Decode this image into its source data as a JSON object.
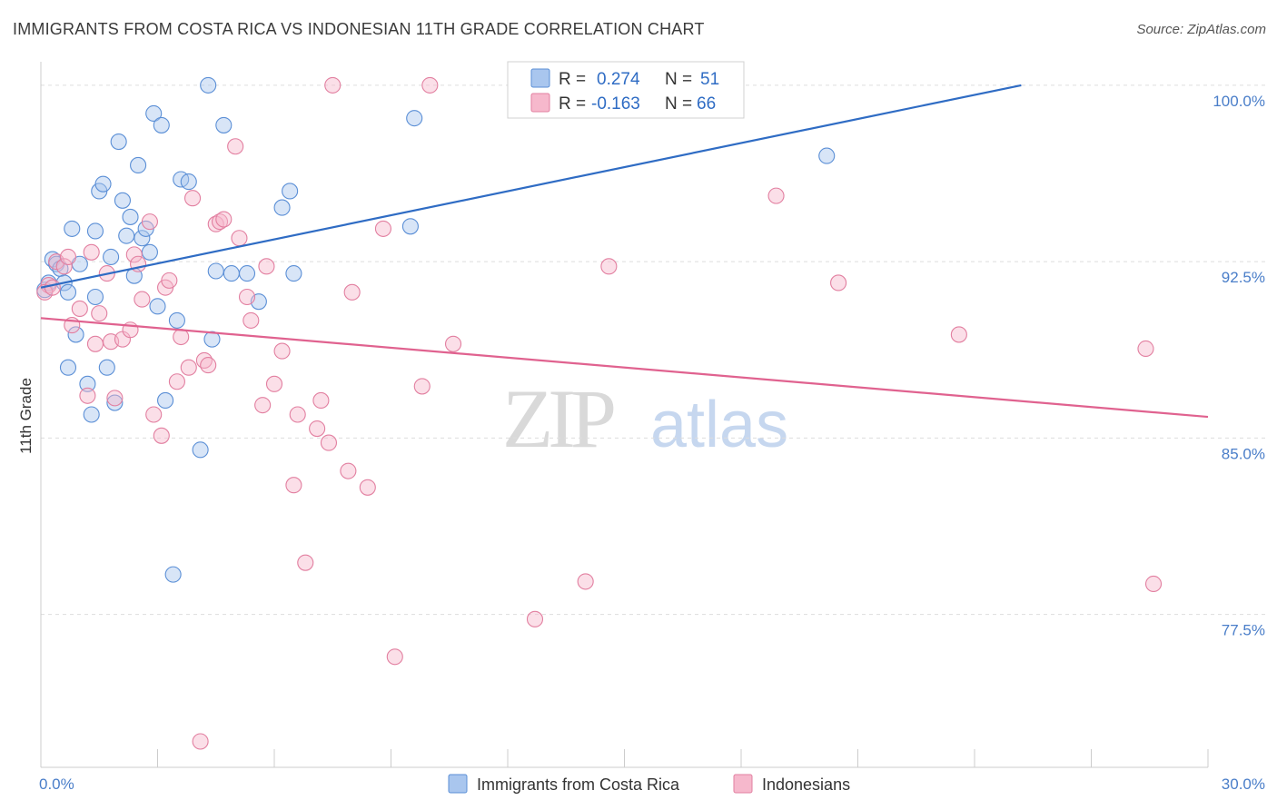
{
  "title": "IMMIGRANTS FROM COSTA RICA VS INDONESIAN 11TH GRADE CORRELATION CHART",
  "source": "Source: ZipAtlas.com",
  "watermark": {
    "zip": "ZIP",
    "atlas": "atlas"
  },
  "colors": {
    "blue_fill": "#a9c6ee",
    "blue_stroke": "#5b8fd6",
    "blue_line": "#2f6cc4",
    "pink_fill": "#f6b8cc",
    "pink_stroke": "#e27fa0",
    "pink_line": "#e0628f",
    "grid": "#dddddd",
    "tick_label": "#4a7ec9"
  },
  "legend": {
    "r_label": "R =",
    "n_label": "N =",
    "rows": [
      {
        "r": "0.274",
        "n": "51",
        "color": "blue"
      },
      {
        "r": "-0.163",
        "n": "66",
        "color": "pink"
      }
    ]
  },
  "chart_data": {
    "type": "scatter",
    "xlabel": "",
    "ylabel": "11th Grade",
    "xlim": [
      0,
      30
    ],
    "ylim": [
      71,
      101
    ],
    "x_tick_labels": [
      {
        "value": 0,
        "label": "0.0%"
      },
      {
        "value": 30,
        "label": "30.0%"
      }
    ],
    "y_tick_labels": [
      {
        "value": 100,
        "label": "100.0%"
      },
      {
        "value": 92.5,
        "label": "92.5%"
      },
      {
        "value": 85,
        "label": "85.0%"
      },
      {
        "value": 77.5,
        "label": "77.5%"
      }
    ],
    "grid": true,
    "legend_position": "bottom-center",
    "series": [
      {
        "name": "Immigrants from Costa Rica",
        "color": "blue",
        "trend": {
          "x": [
            0,
            25.2
          ],
          "y": [
            91.4,
            100.0
          ]
        },
        "points": [
          [
            0.1,
            91.3
          ],
          [
            0.2,
            91.6
          ],
          [
            0.3,
            92.6
          ],
          [
            0.4,
            92.4
          ],
          [
            0.5,
            92.2
          ],
          [
            0.6,
            91.6
          ],
          [
            0.7,
            91.2
          ],
          [
            0.8,
            93.9
          ],
          [
            0.9,
            89.4
          ],
          [
            1.0,
            92.4
          ],
          [
            0.7,
            88.0
          ],
          [
            1.2,
            87.3
          ],
          [
            1.3,
            86.0
          ],
          [
            1.4,
            91.0
          ],
          [
            1.4,
            93.8
          ],
          [
            1.5,
            95.5
          ],
          [
            1.6,
            95.8
          ],
          [
            1.7,
            88.0
          ],
          [
            1.8,
            92.7
          ],
          [
            1.9,
            86.5
          ],
          [
            2.0,
            97.6
          ],
          [
            2.1,
            95.1
          ],
          [
            2.2,
            93.6
          ],
          [
            2.3,
            94.4
          ],
          [
            2.4,
            91.9
          ],
          [
            2.5,
            96.6
          ],
          [
            2.6,
            93.5
          ],
          [
            2.7,
            93.9
          ],
          [
            2.8,
            92.9
          ],
          [
            2.9,
            98.8
          ],
          [
            3.0,
            90.6
          ],
          [
            3.1,
            98.3
          ],
          [
            3.2,
            86.6
          ],
          [
            3.4,
            79.2
          ],
          [
            3.5,
            90.0
          ],
          [
            3.6,
            96.0
          ],
          [
            3.8,
            95.9
          ],
          [
            4.1,
            84.5
          ],
          [
            4.3,
            100.0
          ],
          [
            4.4,
            89.2
          ],
          [
            4.5,
            92.1
          ],
          [
            4.7,
            98.3
          ],
          [
            4.9,
            92.0
          ],
          [
            5.3,
            92.0
          ],
          [
            5.6,
            90.8
          ],
          [
            6.2,
            94.8
          ],
          [
            6.4,
            95.5
          ],
          [
            6.5,
            92.0
          ],
          [
            9.5,
            94.0
          ],
          [
            9.6,
            98.6
          ],
          [
            20.2,
            97.0
          ]
        ]
      },
      {
        "name": "Indonesians",
        "color": "pink",
        "trend": {
          "x": [
            0,
            30
          ],
          "y": [
            90.1,
            85.9
          ]
        },
        "points": [
          [
            0.2,
            91.5
          ],
          [
            0.4,
            92.5
          ],
          [
            0.6,
            92.3
          ],
          [
            0.7,
            92.7
          ],
          [
            0.8,
            89.8
          ],
          [
            1.0,
            90.5
          ],
          [
            1.2,
            86.8
          ],
          [
            1.3,
            92.9
          ],
          [
            1.4,
            89.0
          ],
          [
            1.5,
            90.3
          ],
          [
            1.7,
            92.0
          ],
          [
            1.8,
            89.1
          ],
          [
            1.9,
            86.7
          ],
          [
            2.1,
            89.2
          ],
          [
            2.3,
            89.6
          ],
          [
            2.4,
            92.8
          ],
          [
            2.5,
            92.4
          ],
          [
            2.6,
            90.9
          ],
          [
            2.8,
            94.2
          ],
          [
            2.9,
            86.0
          ],
          [
            3.1,
            85.1
          ],
          [
            3.2,
            91.4
          ],
          [
            3.3,
            91.7
          ],
          [
            3.5,
            87.4
          ],
          [
            3.6,
            89.3
          ],
          [
            3.8,
            88.0
          ],
          [
            3.9,
            95.2
          ],
          [
            4.1,
            72.1
          ],
          [
            4.2,
            88.3
          ],
          [
            4.3,
            88.1
          ],
          [
            4.5,
            94.1
          ],
          [
            4.6,
            94.2
          ],
          [
            4.7,
            94.3
          ],
          [
            5.0,
            97.4
          ],
          [
            5.1,
            93.5
          ],
          [
            5.3,
            91.0
          ],
          [
            5.4,
            90.0
          ],
          [
            5.7,
            86.4
          ],
          [
            5.8,
            92.3
          ],
          [
            6.0,
            87.3
          ],
          [
            6.2,
            88.7
          ],
          [
            6.5,
            83.0
          ],
          [
            6.6,
            86.0
          ],
          [
            6.8,
            79.7
          ],
          [
            7.1,
            85.4
          ],
          [
            7.2,
            86.6
          ],
          [
            7.4,
            84.8
          ],
          [
            7.5,
            100.0
          ],
          [
            7.9,
            83.6
          ],
          [
            8.0,
            91.2
          ],
          [
            8.4,
            82.9
          ],
          [
            8.8,
            93.9
          ],
          [
            9.1,
            75.7
          ],
          [
            9.8,
            87.2
          ],
          [
            10.0,
            100.0
          ],
          [
            10.6,
            89.0
          ],
          [
            12.7,
            77.3
          ],
          [
            14.0,
            78.9
          ],
          [
            14.6,
            92.3
          ],
          [
            18.9,
            95.3
          ],
          [
            20.5,
            91.6
          ],
          [
            23.6,
            89.4
          ],
          [
            28.4,
            88.8
          ],
          [
            28.6,
            78.8
          ],
          [
            0.1,
            91.2
          ],
          [
            0.3,
            91.4
          ]
        ]
      }
    ]
  }
}
